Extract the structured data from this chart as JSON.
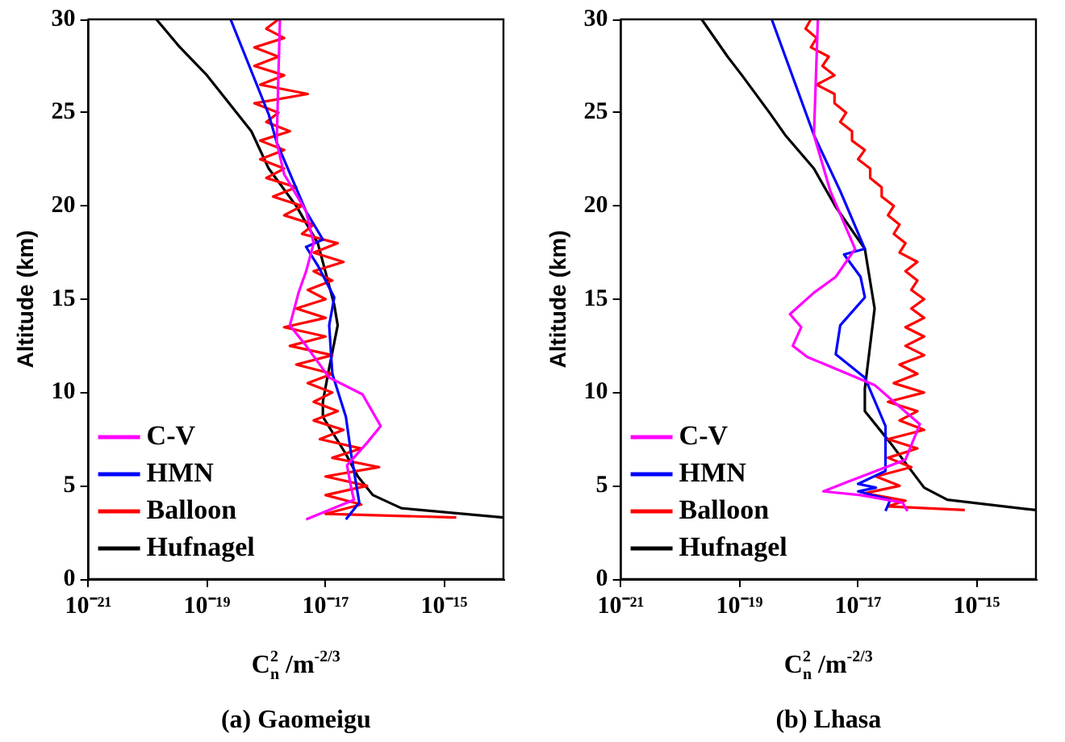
{
  "chart_data": [
    {
      "type": "line",
      "title": "(a) Gaomeigu",
      "xlabel": "C$_{n}$$^{2}$ /m$^{-2/3}$",
      "ylabel": "Altitude (km)",
      "log": "x",
      "xlim": [
        1e-21,
        1e-14
      ],
      "xticks": [
        {
          "value": 1e-21,
          "label": "10⁻²¹"
        },
        {
          "value": 1e-19,
          "label": "10⁻¹⁹"
        },
        {
          "value": 1e-17,
          "label": "10⁻¹⁷"
        },
        {
          "value": 1e-15,
          "label": "10⁻¹⁵"
        }
      ],
      "ylim": [
        0,
        30
      ],
      "yticks": [
        0,
        5,
        10,
        15,
        20,
        25,
        30
      ],
      "grid": false,
      "legend": "bottom left",
      "marker": "none",
      "line_style": "solid",
      "series": [
        {
          "name": "C-V",
          "color": "#ff00ff",
          "x": [
            4.7e-18,
            3e-17,
            2.7e-17,
            2.3e-17,
            5e-17,
            8.5e-17,
            4.2e-17,
            1.15e-17,
            4.7e-18,
            2.5e-18,
            3.5e-18,
            4.7e-18,
            6.3e-18,
            4.7e-18,
            2e-18,
            1.5e-18,
            1.6e-18,
            1.7e-18
          ],
          "values": [
            3.2,
            4.25,
            4.9,
            6.1,
            7.3,
            8.2,
            9.9,
            10.8,
            12.5,
            13.6,
            15.35,
            16.5,
            18,
            19.7,
            21.7,
            23.4,
            27,
            30
          ]
        },
        {
          "name": "HMN",
          "color": "#0000ff",
          "x": [
            2.2e-17,
            3.7e-17,
            2.7e-17,
            2.2e-17,
            1.3e-17,
            1.15e-17,
            1.4e-17,
            7.4e-18,
            4.7e-18,
            9e-18,
            4.7e-18,
            1.5e-18,
            1.1e-18,
            2.5e-19
          ],
          "values": [
            3.2,
            4.1,
            6.7,
            8.7,
            11,
            13.6,
            15.1,
            16.8,
            17.8,
            18.2,
            19.7,
            23.4,
            24.9,
            30
          ]
        },
        {
          "name": "Balloon",
          "color": "#ff0000",
          "x": [
            1.6e-15,
            1e-17,
            4e-17,
            1e-17,
            5e-17,
            1e-17,
            8e-17,
            1.3e-17,
            4e-17,
            8e-18,
            2e-17,
            6.3e-18,
            1.6e-17,
            6.3e-18,
            1.3e-17,
            5e-18,
            1.3e-17,
            3.2e-18,
            1.3e-17,
            2.5e-18,
            1e-17,
            2e-18,
            1e-17,
            3.2e-18,
            1e-17,
            5e-18,
            1.3e-17,
            6.3e-18,
            2e-17,
            6.3e-18,
            1.6e-17,
            4e-18,
            6.3e-18,
            2e-18,
            4e-18,
            1.3e-18,
            3.2e-18,
            1e-18,
            2e-18,
            7.9e-19,
            2e-18,
            7.9e-19,
            2.5e-18,
            1e-18,
            1.6e-18,
            6.3e-19,
            5e-18,
            7.9e-19,
            2e-18,
            6.3e-19,
            1.6e-18,
            6.3e-19,
            2e-18,
            1e-18,
            1.6e-18
          ],
          "values": [
            3.3,
            3.5,
            4,
            4.5,
            5,
            5.5,
            6,
            6.5,
            7,
            7.5,
            8,
            8.5,
            9,
            9.5,
            10,
            10.5,
            11,
            11.5,
            12,
            12.5,
            13,
            13.5,
            14,
            14.5,
            15,
            15.5,
            16,
            16.5,
            17,
            17.5,
            18,
            18.5,
            19,
            19.5,
            20,
            20.5,
            21,
            21.5,
            22,
            22.5,
            23,
            23.5,
            24,
            24.5,
            25,
            25.5,
            26,
            26.5,
            27,
            27.5,
            28,
            28.5,
            29,
            29.5,
            30
          ]
        },
        {
          "name": "Hufnagel",
          "color": "#000000",
          "x": [
            1e-14,
            1.9e-16,
            6.3e-17,
            3.5e-17,
            2.2e-17,
            9e-18,
            9e-18,
            1.1e-17,
            1.6e-17,
            1.4e-17,
            7.4e-18,
            3.2e-18,
            1.1e-18,
            5.6e-19,
            1e-19,
            3.5e-20,
            1.4e-20
          ],
          "values": [
            3.3,
            3.8,
            4.5,
            5.5,
            6.7,
            8.7,
            9.5,
            11,
            13.6,
            14.7,
            18,
            20,
            22,
            24,
            27,
            28.5,
            30
          ]
        }
      ]
    },
    {
      "type": "line",
      "title": "(b) Lhasa",
      "xlabel": "C$_{n}$$^{2}$ /m$^{-2/3}$",
      "ylabel": "Altitude (km)",
      "log": "x",
      "xlim": [
        1e-21,
        1e-14
      ],
      "xticks": [
        {
          "value": 1e-21,
          "label": "10⁻²¹"
        },
        {
          "value": 1e-19,
          "label": "10⁻¹⁹"
        },
        {
          "value": 1e-17,
          "label": "10⁻¹⁷"
        },
        {
          "value": 1e-15,
          "label": "10⁻¹⁵"
        }
      ],
      "ylim": [
        0,
        30
      ],
      "yticks": [
        0,
        5,
        10,
        15,
        20,
        25,
        30
      ],
      "grid": false,
      "legend": "bottom left",
      "marker": "none",
      "line_style": "solid",
      "series": [
        {
          "name": "C-V",
          "color": "#ff00ff",
          "x": [
            6.8e-17,
            5.6e-17,
            1.1e-17,
            2.6e-18,
            6.5e-18,
            6.3e-17,
            1.1e-16,
            1.9e-17,
            1.4e-18,
            7.9e-19,
            1.1e-18,
            7.1e-19,
            1.8e-18,
            4.2e-18,
            8.9e-18,
            3.4e-18,
            1.8e-18,
            2.1e-18
          ],
          "values": [
            3.65,
            4.1,
            4.5,
            4.7,
            5.2,
            6.4,
            8.3,
            10.4,
            11.9,
            12.5,
            13.5,
            14.2,
            15.35,
            16.2,
            17.7,
            20.8,
            23.8,
            30
          ]
        },
        {
          "name": "HMN",
          "color": "#0000ff",
          "x": [
            2.9e-17,
            3.5e-17,
            1e-17,
            2e-17,
            1e-17,
            2.9e-17,
            2.9e-17,
            1.3e-17,
            4.2e-18,
            5e-18,
            1.3e-17,
            1.1e-17,
            5.8e-18,
            1.3e-17,
            5e-18,
            1.8e-18,
            3.5e-19
          ],
          "values": [
            3.65,
            4.25,
            4.7,
            4.9,
            5.1,
            5.8,
            8.2,
            10.8,
            12.05,
            13.6,
            15.1,
            16.2,
            17.4,
            17.7,
            20.8,
            23.8,
            30
          ]
        },
        {
          "name": "Balloon",
          "color": "#ff0000",
          "x": [
            6.3e-16,
            3.2e-17,
            6.3e-17,
            1.3e-17,
            5e-17,
            2e-17,
            7.9e-17,
            3.2e-17,
            1e-16,
            3.2e-17,
            1.3e-16,
            5e-17,
            1e-16,
            3.2e-17,
            1.3e-16,
            4e-17,
            1e-16,
            5e-17,
            1.3e-16,
            6.3e-17,
            1.3e-16,
            6.3e-17,
            1.3e-16,
            7.9e-17,
            1.3e-16,
            7.9e-17,
            1e-16,
            6.3e-17,
            1e-16,
            5e-17,
            6.3e-17,
            4e-17,
            5e-17,
            3.2e-17,
            4e-17,
            2.5e-17,
            2.5e-17,
            1.6e-17,
            1.6e-17,
            1e-17,
            1.3e-17,
            7.9e-18,
            7.9e-18,
            5e-18,
            6.3e-18,
            4e-18,
            4e-18,
            2e-18,
            4e-18,
            2.5e-18,
            3.2e-18,
            1.6e-18,
            2e-18,
            1.3e-18,
            1.6e-18
          ],
          "values": [
            3.7,
            3.9,
            4.2,
            4.6,
            5,
            5.5,
            6,
            6.5,
            7,
            7.5,
            8,
            8.5,
            9,
            9.5,
            10,
            10.5,
            11,
            11.5,
            12,
            12.5,
            13,
            13.5,
            14,
            14.5,
            15,
            15.5,
            16,
            16.5,
            17,
            17.5,
            18,
            18.5,
            19,
            19.5,
            20,
            20.5,
            21,
            21.5,
            22,
            22.5,
            23,
            23.5,
            24,
            24.5,
            25,
            25.5,
            26,
            26.5,
            27,
            27.5,
            28,
            28.5,
            29,
            29.5,
            30
          ]
        },
        {
          "name": "Hufnagel",
          "color": "#000000",
          "x": [
            1e-14,
            3.2e-16,
            1.3e-16,
            3.5e-17,
            1.3e-17,
            1.3e-17,
            1.9e-17,
            1.3e-17,
            4.2e-18,
            1.8e-18,
            5.9e-19,
            3.2e-19,
            1.1e-19,
            6.3e-20,
            2.3e-20
          ],
          "values": [
            3.7,
            4.25,
            4.9,
            7.3,
            9,
            10.2,
            14.5,
            17.7,
            19.95,
            22,
            23.8,
            25,
            27,
            28,
            30
          ]
        }
      ]
    }
  ]
}
